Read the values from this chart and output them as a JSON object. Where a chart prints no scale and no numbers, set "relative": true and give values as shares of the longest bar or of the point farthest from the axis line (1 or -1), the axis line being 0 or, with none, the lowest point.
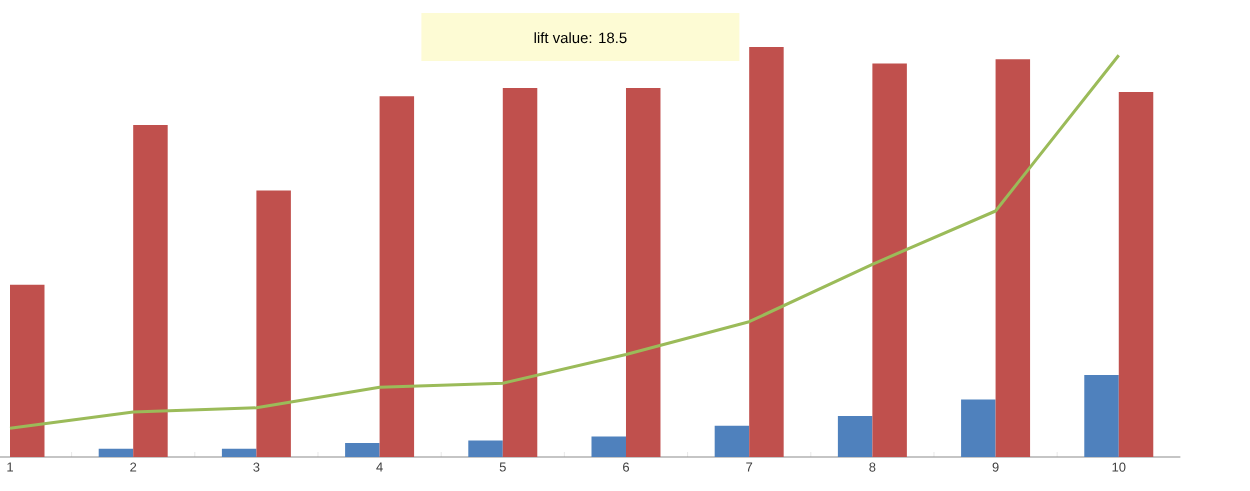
{
  "chart_data": {
    "type": "bar",
    "relative": true,
    "categories": [
      "1",
      "2",
      "3",
      "4",
      "5",
      "6",
      "7",
      "8",
      "9",
      "10"
    ],
    "series": [
      {
        "color": "#4f81bd",
        "values": [
          0,
          0.02,
          0.02,
          0.034,
          0.04,
          0.05,
          0.076,
          0.1,
          0.14,
          0.2
        ]
      },
      {
        "color": "#c0504d",
        "values": [
          0.42,
          0.81,
          0.65,
          0.88,
          0.9,
          0.9,
          1.0,
          0.96,
          0.97,
          0.89
        ]
      },
      {
        "type": "line",
        "color": "#9bbb59",
        "values": [
          0.07,
          0.11,
          0.12,
          0.17,
          0.18,
          0.25,
          0.33,
          0.47,
          0.6,
          0.98
        ]
      }
    ],
    "annotations": [
      "lift value: 18.5"
    ]
  }
}
